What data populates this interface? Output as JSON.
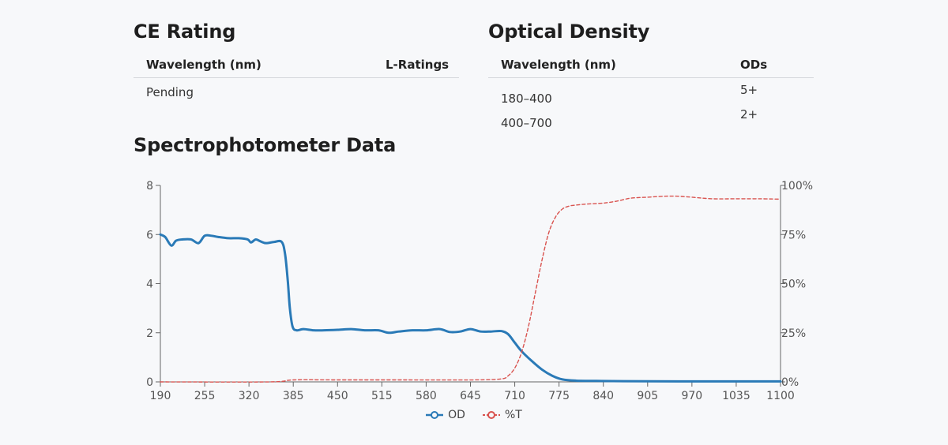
{
  "ce_rating": {
    "title": "CE Rating",
    "headers": [
      "Wavelength (nm)",
      "L-Ratings"
    ],
    "rows": [
      [
        "Pending",
        ""
      ]
    ]
  },
  "optical_density": {
    "title": "Optical Density",
    "headers": [
      "Wavelength (nm)",
      "ODs"
    ],
    "rows": [
      [
        "180–400",
        "5+"
      ],
      [
        "400–700",
        "2+"
      ]
    ]
  },
  "spectro": {
    "title": "Spectrophotometer Data"
  },
  "colors": {
    "od": "#2a7ab7",
    "transmittance": "#d9534f",
    "axis": "#666666"
  },
  "chart_data": {
    "type": "line",
    "title": "",
    "xlabel": "",
    "ylabel": "",
    "x_ticks": [
      190,
      255,
      320,
      385,
      450,
      515,
      580,
      645,
      710,
      775,
      840,
      905,
      970,
      1035,
      1100
    ],
    "xlim": [
      190,
      1100
    ],
    "y_left": {
      "ticks": [
        0,
        2,
        4,
        6,
        8
      ],
      "lim": [
        0,
        8
      ]
    },
    "y_right": {
      "ticks": [
        "0%",
        "25%",
        "50%",
        "75%",
        "100%"
      ],
      "lim": [
        0,
        100
      ]
    },
    "grid": false,
    "legend": "bottom-center",
    "series": [
      {
        "name": "OD",
        "axis": "left",
        "style": "solid",
        "color": "#2a7ab7",
        "x": [
          190,
          197,
          206,
          213,
          222,
          235,
          246,
          255,
          265,
          275,
          290,
          305,
          318,
          323,
          330,
          337,
          345,
          357,
          368,
          373,
          377,
          380,
          384,
          390,
          400,
          415,
          430,
          450,
          470,
          490,
          510,
          525,
          540,
          560,
          580,
          600,
          615,
          630,
          645,
          660,
          675,
          690,
          700,
          710,
          720,
          735,
          750,
          765,
          780,
          800,
          830,
          870,
          950,
          1050,
          1100
        ],
        "y": [
          6.0,
          5.9,
          5.55,
          5.75,
          5.8,
          5.8,
          5.65,
          5.95,
          5.95,
          5.9,
          5.85,
          5.85,
          5.8,
          5.68,
          5.8,
          5.72,
          5.65,
          5.7,
          5.7,
          5.2,
          4.1,
          3.0,
          2.25,
          2.1,
          2.15,
          2.1,
          2.1,
          2.12,
          2.15,
          2.1,
          2.1,
          2.0,
          2.05,
          2.1,
          2.1,
          2.15,
          2.03,
          2.05,
          2.15,
          2.05,
          2.05,
          2.07,
          1.95,
          1.6,
          1.25,
          0.85,
          0.5,
          0.25,
          0.1,
          0.05,
          0.04,
          0.03,
          0.02,
          0.02,
          0.02
        ]
      },
      {
        "name": "%T",
        "axis": "right",
        "style": "dashed",
        "color": "#d9534f",
        "x": [
          190,
          350,
          385,
          450,
          550,
          650,
          690,
          700,
          710,
          720,
          730,
          740,
          750,
          760,
          770,
          780,
          790,
          800,
          815,
          840,
          860,
          880,
          905,
          930,
          950,
          970,
          1000,
          1035,
          1070,
          1100
        ],
        "y": [
          0,
          0,
          1,
          1,
          1,
          1,
          1.5,
          3,
          7,
          15,
          28,
          45,
          62,
          76,
          84,
          88,
          89.5,
          90,
          90.5,
          91,
          92,
          93.5,
          94,
          94.5,
          94.5,
          94,
          93.2,
          93.2,
          93.2,
          93
        ]
      }
    ]
  }
}
